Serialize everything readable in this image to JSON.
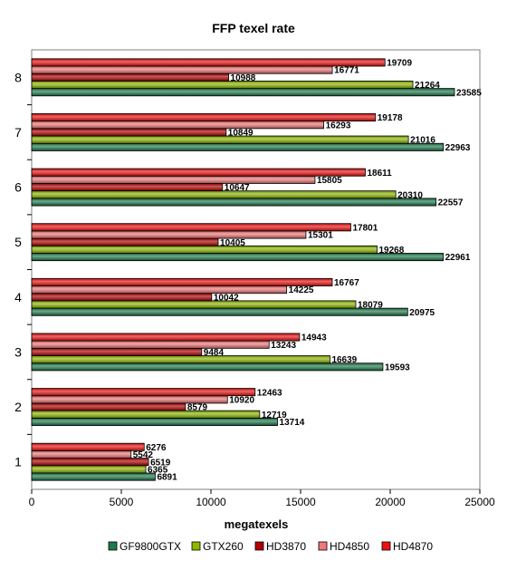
{
  "chart_data": {
    "type": "bar",
    "orientation": "horizontal",
    "title": "FFP texel rate",
    "xlabel": "megatexels",
    "ylabel": "",
    "xlim": [
      0,
      25000
    ],
    "xticks": [
      0,
      5000,
      10000,
      15000,
      20000,
      25000
    ],
    "tick_labels": [
      "0",
      "5000",
      "10000",
      "15000",
      "20000",
      "25000"
    ],
    "categories": [
      "1",
      "2",
      "3",
      "4",
      "5",
      "6",
      "7",
      "8"
    ],
    "legend_position": "bottom",
    "grid": false,
    "series": [
      {
        "name": "GF9800GTX",
        "color": "#1f7a4d",
        "values": [
          6891,
          13714,
          19593,
          20975,
          22961,
          22557,
          22963,
          23585
        ]
      },
      {
        "name": "GTX260",
        "color": "#8fb800",
        "values": [
          6365,
          12719,
          16639,
          18079,
          19268,
          20310,
          21016,
          21264
        ]
      },
      {
        "name": "HD3870",
        "color": "#b00000",
        "values": [
          6519,
          8579,
          9484,
          10042,
          10405,
          10647,
          10849,
          10988
        ]
      },
      {
        "name": "HD4850",
        "color": "#f07878",
        "values": [
          5542,
          10920,
          13243,
          14225,
          15301,
          15805,
          16293,
          16771
        ]
      },
      {
        "name": "HD4870",
        "color": "#ee1111",
        "values": [
          6276,
          12463,
          14943,
          16767,
          17801,
          18611,
          19178,
          19709
        ]
      }
    ]
  }
}
